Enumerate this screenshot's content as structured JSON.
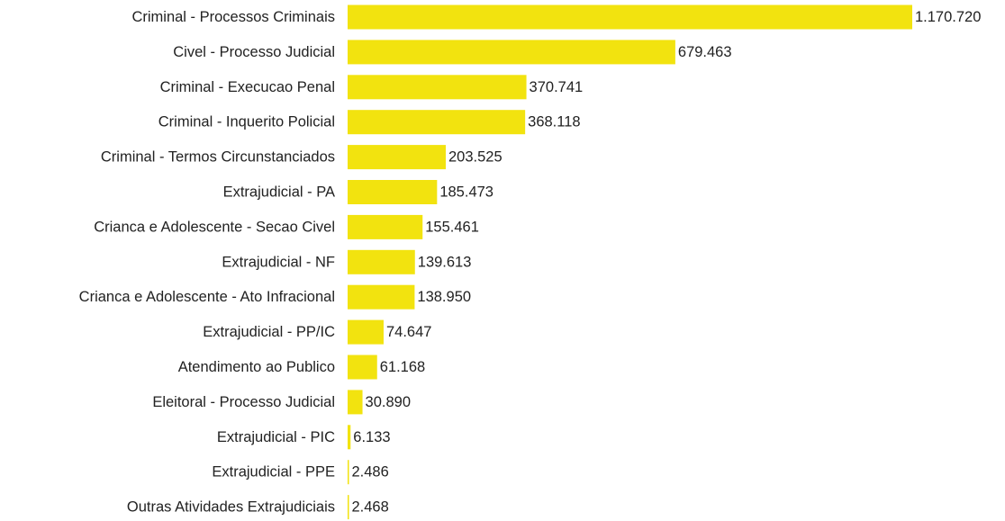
{
  "chart_data": {
    "type": "bar",
    "orientation": "horizontal",
    "title": "",
    "xlabel": "",
    "ylabel": "",
    "grid": false,
    "legend": "none",
    "bar_color": "#f2e30f",
    "categories": [
      "Criminal - Processos Criminais",
      "Civel - Processo Judicial",
      "Criminal - Execucao Penal",
      "Criminal - Inquerito Policial",
      "Criminal - Termos Circunstanciados",
      "Extrajudicial - PA",
      "Crianca e Adolescente - Secao Civel",
      "Extrajudicial - NF",
      "Crianca e Adolescente - Ato Infracional",
      "Extrajudicial - PP/IC",
      "Atendimento ao Publico",
      "Eleitoral - Processo Judicial",
      "Extrajudicial - PIC",
      "Extrajudicial - PPE",
      "Outras Atividades Extrajudiciais"
    ],
    "values": [
      1170720,
      679463,
      370741,
      368118,
      203525,
      185473,
      155461,
      139613,
      138950,
      74647,
      61168,
      30890,
      6133,
      2486,
      2468
    ],
    "value_labels": [
      "1.170.720",
      "679.463",
      "370.741",
      "368.118",
      "203.525",
      "185.473",
      "155.461",
      "139.613",
      "138.950",
      "74.647",
      "61.168",
      "30.890",
      "6.133",
      "2.486",
      "2.468"
    ],
    "xlim": [
      0,
      1170720
    ]
  }
}
